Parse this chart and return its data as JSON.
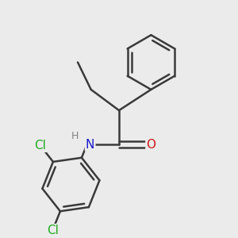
{
  "background_color": "#ebebeb",
  "bond_color": "#3a3a3a",
  "bond_width": 1.8,
  "N_color": "#1a1acc",
  "O_color": "#cc1a1a",
  "Cl_color": "#22aa22",
  "H_color": "#808080",
  "font_size_atoms": 11,
  "xlim": [
    0.0,
    5.5
  ],
  "ylim": [
    0.2,
    5.8
  ]
}
